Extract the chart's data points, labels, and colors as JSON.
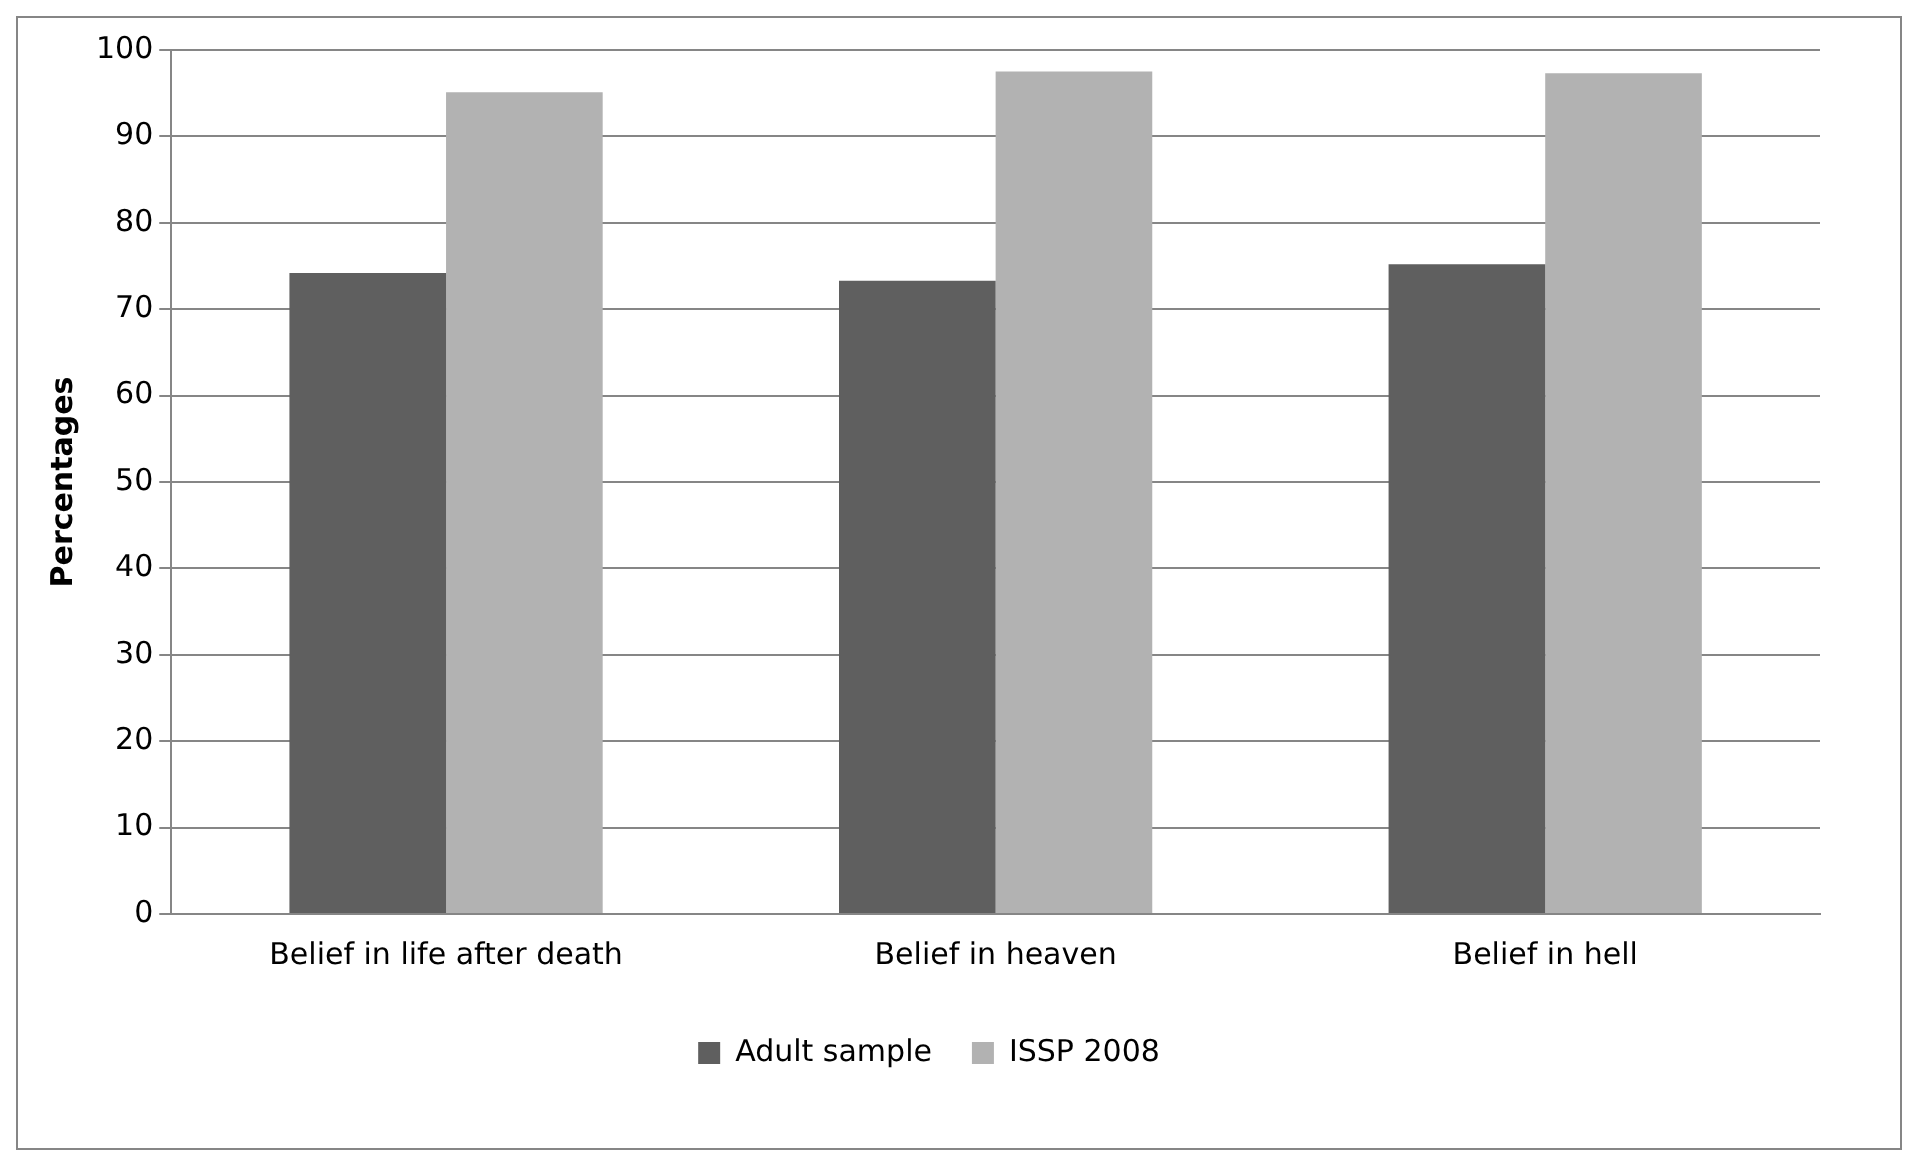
{
  "chart_data": {
    "type": "bar",
    "ylabel": "Percentages",
    "categories": [
      "Belief in life after death",
      "Belief in heaven",
      "Belief in hell"
    ],
    "series": [
      {
        "name": "Adult sample",
        "color": "#5f5f5f",
        "values": [
          74.2,
          73.3,
          75.2
        ]
      },
      {
        "name": "ISSP 2008",
        "color": "#b2b2b2",
        "values": [
          95.1,
          97.5,
          97.3
        ]
      }
    ],
    "ylim": [
      0,
      100
    ],
    "yticks": [
      0,
      10,
      20,
      30,
      40,
      50,
      60,
      70,
      80,
      90,
      100
    ],
    "grid": "y",
    "legend": "bottom"
  }
}
